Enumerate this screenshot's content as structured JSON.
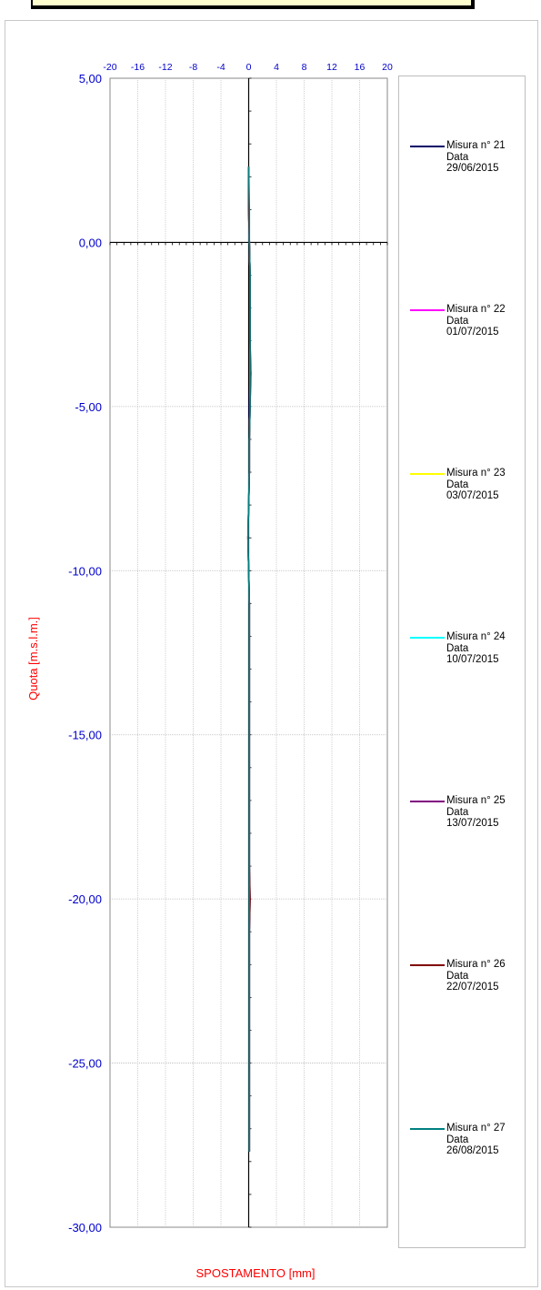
{
  "chart_data": {
    "type": "line",
    "title": "",
    "xlabel": "SPOSTAMENTO [mm]",
    "ylabel": "Quota [m.s.l.m.]",
    "xlim": [
      -20,
      20
    ],
    "ylim": [
      -30,
      5
    ],
    "x_ticks": [
      -20,
      -16,
      -12,
      -8,
      -4,
      0,
      4,
      8,
      12,
      16,
      20
    ],
    "x_tick_labels": [
      "-20",
      "-16",
      "-12",
      "-8",
      "-4",
      "0",
      "4",
      "8",
      "12",
      "16",
      "20"
    ],
    "y_ticks": [
      5,
      0,
      -5,
      -10,
      -15,
      -20,
      -25,
      -30
    ],
    "y_tick_labels": [
      "5,00",
      "0,00",
      "-5,00",
      "-10,00",
      "-15,00",
      "-20,00",
      "-25,00",
      "-30,00"
    ],
    "grid": true,
    "legend_placement": "right",
    "quota": [
      2.3,
      1.0,
      0.0,
      -1.0,
      -2.0,
      -3.0,
      -4.0,
      -5.0,
      -6.0,
      -7.0,
      -8.0,
      -9.0,
      -10.0,
      -11.0,
      -12.0,
      -13.0,
      -14.0,
      -15.0,
      -16.0,
      -17.0,
      -18.0,
      -19.0,
      -20.0,
      -21.0,
      -22.0,
      -23.0,
      -24.0,
      -25.0,
      -26.0,
      -27.0,
      -27.7
    ],
    "series": [
      {
        "name": "Misura n° 21",
        "date_label": "Data",
        "date": "29/06/2015",
        "color": "#000066",
        "values": [
          0.0,
          0.0,
          0.1,
          0.2,
          0.2,
          0.2,
          0.2,
          0.1,
          0.1,
          0.1,
          0.0,
          -0.1,
          0.0,
          0.1,
          0.1,
          0.1,
          0.1,
          0.1,
          0.1,
          0.1,
          0.1,
          0.1,
          0.1,
          0.1,
          0.1,
          0.1,
          0.1,
          0.1,
          0.1,
          0.1,
          0.1
        ]
      },
      {
        "name": "Misura n° 22",
        "date_label": "Data",
        "date": "01/07/2015",
        "color": "#ff00ff",
        "values": [
          0.0,
          0.0,
          0.1,
          0.2,
          0.2,
          0.2,
          0.2,
          0.2,
          0.1,
          0.1,
          0.0,
          -0.1,
          0.0,
          0.1,
          0.1,
          0.1,
          0.1,
          0.1,
          0.1,
          0.1,
          0.1,
          0.1,
          0.1,
          0.1,
          0.1,
          0.1,
          0.1,
          0.1,
          0.1,
          0.1,
          0.1
        ]
      },
      {
        "name": "Misura n° 23",
        "date_label": "Data",
        "date": "03/07/2015",
        "color": "#ffff00",
        "values": [
          0.0,
          0.0,
          0.1,
          0.2,
          0.2,
          0.2,
          0.2,
          0.2,
          0.1,
          0.1,
          0.0,
          -0.1,
          0.0,
          0.1,
          0.1,
          0.1,
          0.1,
          0.1,
          0.1,
          0.1,
          0.1,
          0.1,
          0.1,
          0.1,
          0.1,
          0.1,
          0.1,
          0.1,
          0.1,
          0.1,
          0.1
        ]
      },
      {
        "name": "Misura n° 24",
        "date_label": "Data",
        "date": "10/07/2015",
        "color": "#00ffff",
        "values": [
          0.0,
          0.0,
          0.1,
          0.2,
          0.2,
          0.2,
          0.2,
          0.2,
          0.1,
          0.1,
          0.0,
          -0.1,
          0.0,
          0.1,
          0.1,
          0.1,
          0.1,
          0.1,
          0.1,
          0.1,
          0.1,
          0.1,
          0.1,
          0.1,
          0.1,
          0.1,
          0.1,
          0.1,
          0.1,
          0.1,
          0.1
        ]
      },
      {
        "name": "Misura n° 25",
        "date_label": "Data",
        "date": "13/07/2015",
        "color": "#800080",
        "values": [
          0.0,
          0.0,
          0.1,
          0.2,
          0.2,
          0.2,
          0.3,
          0.2,
          0.1,
          0.1,
          0.0,
          -0.1,
          0.0,
          0.1,
          0.1,
          0.1,
          0.1,
          0.1,
          0.1,
          0.1,
          0.1,
          0.1,
          0.2,
          0.1,
          0.1,
          0.1,
          0.1,
          0.1,
          0.1,
          0.1,
          0.1
        ]
      },
      {
        "name": "Misura n° 26",
        "date_label": "Data",
        "date": "22/07/2015",
        "color": "#800000",
        "values": [
          0.0,
          0.0,
          0.1,
          0.2,
          0.2,
          0.2,
          0.3,
          0.2,
          0.1,
          0.1,
          0.0,
          -0.1,
          0.0,
          0.1,
          0.1,
          0.1,
          0.1,
          0.1,
          0.1,
          0.1,
          0.1,
          0.1,
          0.2,
          0.1,
          0.1,
          0.1,
          0.1,
          0.1,
          0.1,
          0.1,
          0.1
        ]
      },
      {
        "name": "Misura n° 27",
        "date_label": "Data",
        "date": "26/08/2015",
        "color": "#008080",
        "values": [
          0.0,
          0.1,
          0.1,
          0.2,
          0.2,
          0.2,
          0.2,
          0.2,
          0.1,
          0.1,
          0.0,
          -0.1,
          0.0,
          0.1,
          0.1,
          0.1,
          0.1,
          0.1,
          0.1,
          0.1,
          0.1,
          0.1,
          0.1,
          0.1,
          0.1,
          0.1,
          0.1,
          0.1,
          0.1,
          0.1,
          0.1
        ]
      }
    ]
  },
  "colors": {
    "axis_label": "#ff0000",
    "tick_label": "#0000cc",
    "grid": "#bbbbbb",
    "header_fill": "#fefece"
  }
}
